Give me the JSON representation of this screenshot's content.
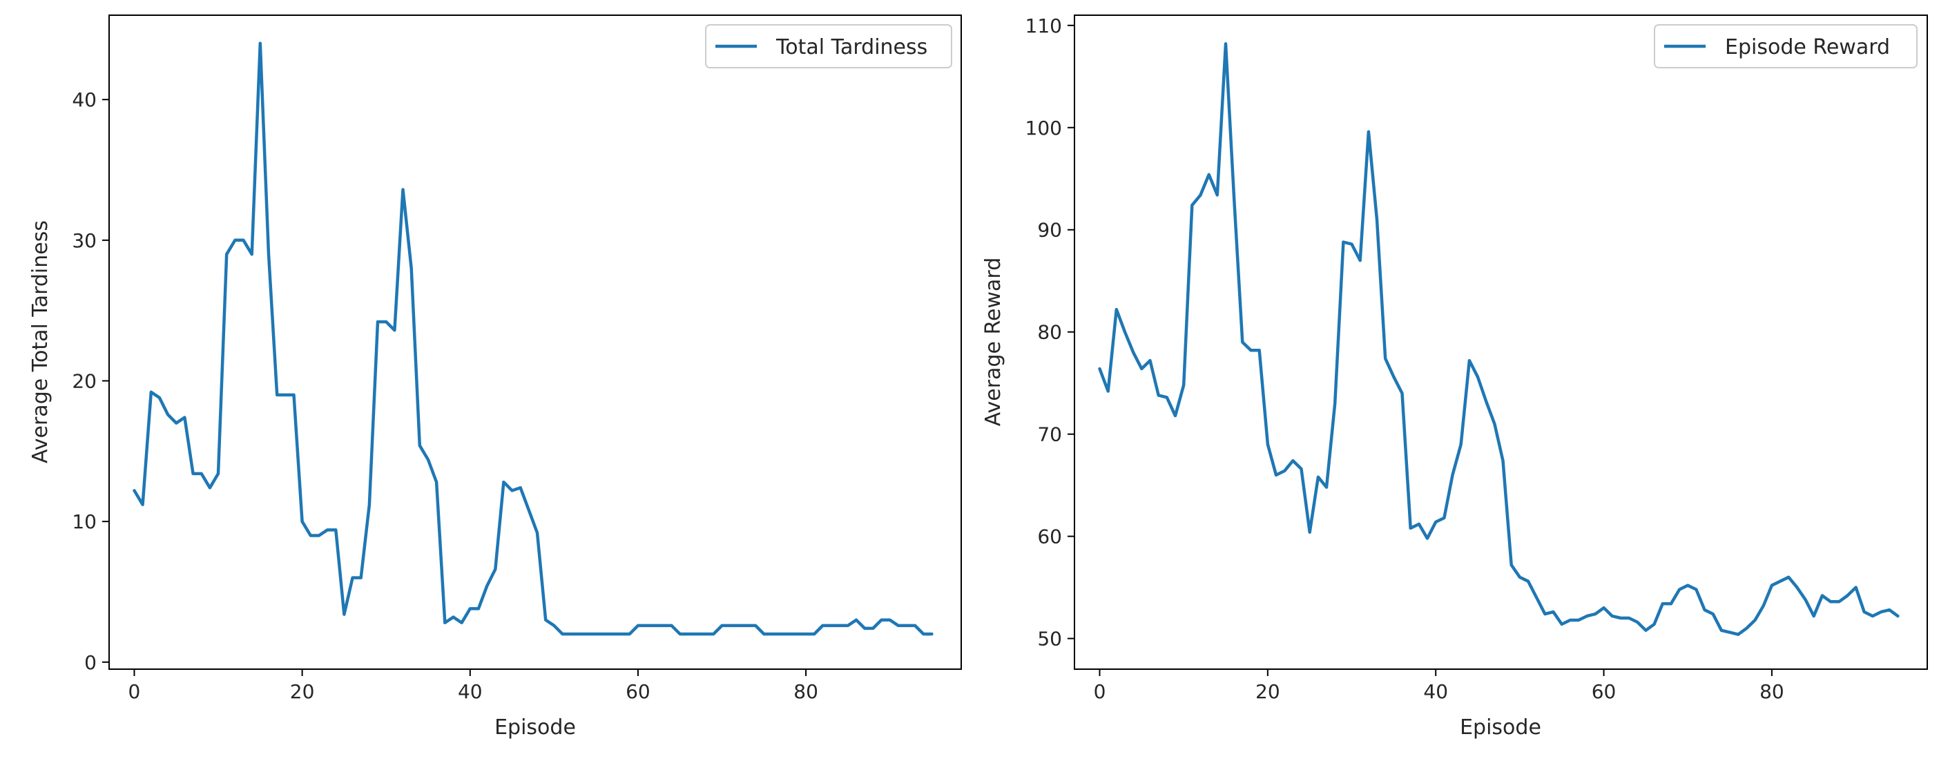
{
  "chart_data": [
    {
      "type": "line",
      "xlabel": "Episode",
      "ylabel": "Average Total Tardiness",
      "xlim": [
        -3,
        98.5
      ],
      "ylim": [
        -0.5,
        46
      ],
      "xticks": [
        0,
        20,
        40,
        60,
        80
      ],
      "yticks": [
        0,
        10,
        20,
        30,
        40
      ],
      "grid": false,
      "legend": "top-right",
      "series": [
        {
          "name": "Total Tardiness",
          "color": "#1f77b4",
          "x": [
            0,
            1,
            2,
            3,
            4,
            5,
            6,
            7,
            8,
            9,
            10,
            11,
            12,
            13,
            14,
            15,
            16,
            17,
            18,
            19,
            20,
            21,
            22,
            23,
            24,
            25,
            26,
            27,
            28,
            29,
            30,
            31,
            32,
            33,
            34,
            35,
            36,
            37,
            38,
            39,
            40,
            41,
            42,
            43,
            44,
            45,
            46,
            47,
            48,
            49,
            50,
            51,
            52,
            53,
            54,
            55,
            56,
            57,
            58,
            59,
            60,
            61,
            62,
            63,
            64,
            65,
            66,
            67,
            68,
            69,
            70,
            71,
            72,
            73,
            74,
            75,
            76,
            77,
            78,
            79,
            80,
            81,
            82,
            83,
            84,
            85,
            86,
            87,
            88,
            89,
            90,
            91,
            92,
            93,
            94,
            95
          ],
          "values": [
            12.2,
            11.2,
            19.2,
            18.8,
            17.6,
            17.0,
            17.4,
            13.4,
            13.4,
            12.4,
            13.4,
            29.0,
            30.0,
            30.0,
            29.0,
            44.0,
            29.0,
            19.0,
            19.0,
            19.0,
            10.0,
            9.0,
            9.0,
            9.4,
            9.4,
            3.4,
            6.0,
            6.0,
            11.2,
            24.2,
            24.2,
            23.6,
            33.6,
            28.0,
            15.4,
            14.4,
            12.8,
            2.8,
            3.2,
            2.8,
            3.8,
            3.8,
            5.4,
            6.6,
            12.8,
            12.2,
            12.4,
            10.8,
            9.2,
            3.0,
            2.6,
            2.0,
            2.0,
            2.0,
            2.0,
            2.0,
            2.0,
            2.0,
            2.0,
            2.0,
            2.6,
            2.6,
            2.6,
            2.6,
            2.6,
            2.0,
            2.0,
            2.0,
            2.0,
            2.0,
            2.6,
            2.6,
            2.6,
            2.6,
            2.6,
            2.0,
            2.0,
            2.0,
            2.0,
            2.0,
            2.0,
            2.0,
            2.6,
            2.6,
            2.6,
            2.6,
            3.0,
            2.4,
            2.4,
            3.0,
            3.0,
            2.6,
            2.6,
            2.6,
            2.0,
            2.0
          ]
        }
      ]
    },
    {
      "type": "line",
      "xlabel": "Episode",
      "ylabel": "Average Reward",
      "xlim": [
        -3,
        98.5
      ],
      "ylim": [
        47,
        111
      ],
      "xticks": [
        0,
        20,
        40,
        60,
        80
      ],
      "yticks": [
        50,
        60,
        70,
        80,
        90,
        100,
        110
      ],
      "grid": false,
      "legend": "top-right",
      "series": [
        {
          "name": "Episode Reward",
          "color": "#1f77b4",
          "x": [
            0,
            1,
            2,
            3,
            4,
            5,
            6,
            7,
            8,
            9,
            10,
            11,
            12,
            13,
            14,
            15,
            16,
            17,
            18,
            19,
            20,
            21,
            22,
            23,
            24,
            25,
            26,
            27,
            28,
            29,
            30,
            31,
            32,
            33,
            34,
            35,
            36,
            37,
            38,
            39,
            40,
            41,
            42,
            43,
            44,
            45,
            46,
            47,
            48,
            49,
            50,
            51,
            52,
            53,
            54,
            55,
            56,
            57,
            58,
            59,
            60,
            61,
            62,
            63,
            64,
            65,
            66,
            67,
            68,
            69,
            70,
            71,
            72,
            73,
            74,
            75,
            76,
            77,
            78,
            79,
            80,
            81,
            82,
            83,
            84,
            85,
            86,
            87,
            88,
            89,
            90,
            91,
            92,
            93,
            94,
            95
          ],
          "values": [
            76.4,
            74.2,
            82.2,
            80.0,
            78.0,
            76.4,
            77.2,
            73.8,
            73.6,
            71.8,
            74.8,
            92.4,
            93.4,
            95.4,
            93.4,
            108.2,
            93.0,
            79.0,
            78.2,
            78.2,
            69.0,
            66.0,
            66.4,
            67.4,
            66.6,
            60.4,
            65.8,
            64.8,
            73.0,
            88.8,
            88.6,
            87.0,
            99.6,
            91.0,
            77.4,
            75.6,
            74.0,
            60.8,
            61.2,
            59.8,
            61.4,
            61.8,
            66.0,
            69.0,
            77.2,
            75.6,
            73.2,
            71.0,
            67.4,
            57.2,
            56.0,
            55.6,
            54.0,
            52.4,
            52.6,
            51.4,
            51.8,
            51.8,
            52.2,
            52.4,
            53.0,
            52.2,
            52.0,
            52.0,
            51.6,
            50.8,
            51.4,
            53.4,
            53.4,
            54.8,
            55.2,
            54.8,
            52.8,
            52.4,
            50.8,
            50.6,
            50.4,
            51.0,
            51.8,
            53.2,
            55.2,
            55.6,
            56.0,
            55.0,
            53.8,
            52.2,
            54.2,
            53.6,
            53.6,
            54.2,
            55.0,
            52.6,
            52.2,
            52.6,
            52.8,
            52.2
          ]
        }
      ]
    }
  ]
}
